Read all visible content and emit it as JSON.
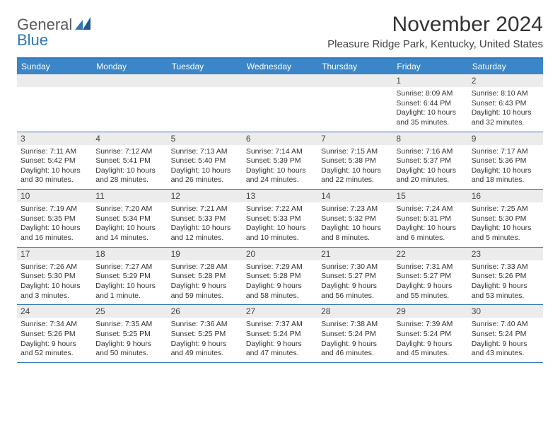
{
  "brand": {
    "part1": "General",
    "part2": "Blue"
  },
  "title": "November 2024",
  "location": "Pleasure Ridge Park, Kentucky, United States",
  "colors": {
    "header_bg": "#3a86c8",
    "border": "#2f78b8",
    "daynum_bg": "#ececec",
    "text": "#333333",
    "brand_gray": "#5a5a5a",
    "brand_blue": "#2f78b8"
  },
  "dow": [
    "Sunday",
    "Monday",
    "Tuesday",
    "Wednesday",
    "Thursday",
    "Friday",
    "Saturday"
  ],
  "weeks": [
    [
      {
        "n": "",
        "sr": "",
        "ss": "",
        "dl": ""
      },
      {
        "n": "",
        "sr": "",
        "ss": "",
        "dl": ""
      },
      {
        "n": "",
        "sr": "",
        "ss": "",
        "dl": ""
      },
      {
        "n": "",
        "sr": "",
        "ss": "",
        "dl": ""
      },
      {
        "n": "",
        "sr": "",
        "ss": "",
        "dl": ""
      },
      {
        "n": "1",
        "sr": "Sunrise: 8:09 AM",
        "ss": "Sunset: 6:44 PM",
        "dl": "Daylight: 10 hours and 35 minutes."
      },
      {
        "n": "2",
        "sr": "Sunrise: 8:10 AM",
        "ss": "Sunset: 6:43 PM",
        "dl": "Daylight: 10 hours and 32 minutes."
      }
    ],
    [
      {
        "n": "3",
        "sr": "Sunrise: 7:11 AM",
        "ss": "Sunset: 5:42 PM",
        "dl": "Daylight: 10 hours and 30 minutes."
      },
      {
        "n": "4",
        "sr": "Sunrise: 7:12 AM",
        "ss": "Sunset: 5:41 PM",
        "dl": "Daylight: 10 hours and 28 minutes."
      },
      {
        "n": "5",
        "sr": "Sunrise: 7:13 AM",
        "ss": "Sunset: 5:40 PM",
        "dl": "Daylight: 10 hours and 26 minutes."
      },
      {
        "n": "6",
        "sr": "Sunrise: 7:14 AM",
        "ss": "Sunset: 5:39 PM",
        "dl": "Daylight: 10 hours and 24 minutes."
      },
      {
        "n": "7",
        "sr": "Sunrise: 7:15 AM",
        "ss": "Sunset: 5:38 PM",
        "dl": "Daylight: 10 hours and 22 minutes."
      },
      {
        "n": "8",
        "sr": "Sunrise: 7:16 AM",
        "ss": "Sunset: 5:37 PM",
        "dl": "Daylight: 10 hours and 20 minutes."
      },
      {
        "n": "9",
        "sr": "Sunrise: 7:17 AM",
        "ss": "Sunset: 5:36 PM",
        "dl": "Daylight: 10 hours and 18 minutes."
      }
    ],
    [
      {
        "n": "10",
        "sr": "Sunrise: 7:19 AM",
        "ss": "Sunset: 5:35 PM",
        "dl": "Daylight: 10 hours and 16 minutes."
      },
      {
        "n": "11",
        "sr": "Sunrise: 7:20 AM",
        "ss": "Sunset: 5:34 PM",
        "dl": "Daylight: 10 hours and 14 minutes."
      },
      {
        "n": "12",
        "sr": "Sunrise: 7:21 AM",
        "ss": "Sunset: 5:33 PM",
        "dl": "Daylight: 10 hours and 12 minutes."
      },
      {
        "n": "13",
        "sr": "Sunrise: 7:22 AM",
        "ss": "Sunset: 5:33 PM",
        "dl": "Daylight: 10 hours and 10 minutes."
      },
      {
        "n": "14",
        "sr": "Sunrise: 7:23 AM",
        "ss": "Sunset: 5:32 PM",
        "dl": "Daylight: 10 hours and 8 minutes."
      },
      {
        "n": "15",
        "sr": "Sunrise: 7:24 AM",
        "ss": "Sunset: 5:31 PM",
        "dl": "Daylight: 10 hours and 6 minutes."
      },
      {
        "n": "16",
        "sr": "Sunrise: 7:25 AM",
        "ss": "Sunset: 5:30 PM",
        "dl": "Daylight: 10 hours and 5 minutes."
      }
    ],
    [
      {
        "n": "17",
        "sr": "Sunrise: 7:26 AM",
        "ss": "Sunset: 5:30 PM",
        "dl": "Daylight: 10 hours and 3 minutes."
      },
      {
        "n": "18",
        "sr": "Sunrise: 7:27 AM",
        "ss": "Sunset: 5:29 PM",
        "dl": "Daylight: 10 hours and 1 minute."
      },
      {
        "n": "19",
        "sr": "Sunrise: 7:28 AM",
        "ss": "Sunset: 5:28 PM",
        "dl": "Daylight: 9 hours and 59 minutes."
      },
      {
        "n": "20",
        "sr": "Sunrise: 7:29 AM",
        "ss": "Sunset: 5:28 PM",
        "dl": "Daylight: 9 hours and 58 minutes."
      },
      {
        "n": "21",
        "sr": "Sunrise: 7:30 AM",
        "ss": "Sunset: 5:27 PM",
        "dl": "Daylight: 9 hours and 56 minutes."
      },
      {
        "n": "22",
        "sr": "Sunrise: 7:31 AM",
        "ss": "Sunset: 5:27 PM",
        "dl": "Daylight: 9 hours and 55 minutes."
      },
      {
        "n": "23",
        "sr": "Sunrise: 7:33 AM",
        "ss": "Sunset: 5:26 PM",
        "dl": "Daylight: 9 hours and 53 minutes."
      }
    ],
    [
      {
        "n": "24",
        "sr": "Sunrise: 7:34 AM",
        "ss": "Sunset: 5:26 PM",
        "dl": "Daylight: 9 hours and 52 minutes."
      },
      {
        "n": "25",
        "sr": "Sunrise: 7:35 AM",
        "ss": "Sunset: 5:25 PM",
        "dl": "Daylight: 9 hours and 50 minutes."
      },
      {
        "n": "26",
        "sr": "Sunrise: 7:36 AM",
        "ss": "Sunset: 5:25 PM",
        "dl": "Daylight: 9 hours and 49 minutes."
      },
      {
        "n": "27",
        "sr": "Sunrise: 7:37 AM",
        "ss": "Sunset: 5:24 PM",
        "dl": "Daylight: 9 hours and 47 minutes."
      },
      {
        "n": "28",
        "sr": "Sunrise: 7:38 AM",
        "ss": "Sunset: 5:24 PM",
        "dl": "Daylight: 9 hours and 46 minutes."
      },
      {
        "n": "29",
        "sr": "Sunrise: 7:39 AM",
        "ss": "Sunset: 5:24 PM",
        "dl": "Daylight: 9 hours and 45 minutes."
      },
      {
        "n": "30",
        "sr": "Sunrise: 7:40 AM",
        "ss": "Sunset: 5:24 PM",
        "dl": "Daylight: 9 hours and 43 minutes."
      }
    ]
  ]
}
